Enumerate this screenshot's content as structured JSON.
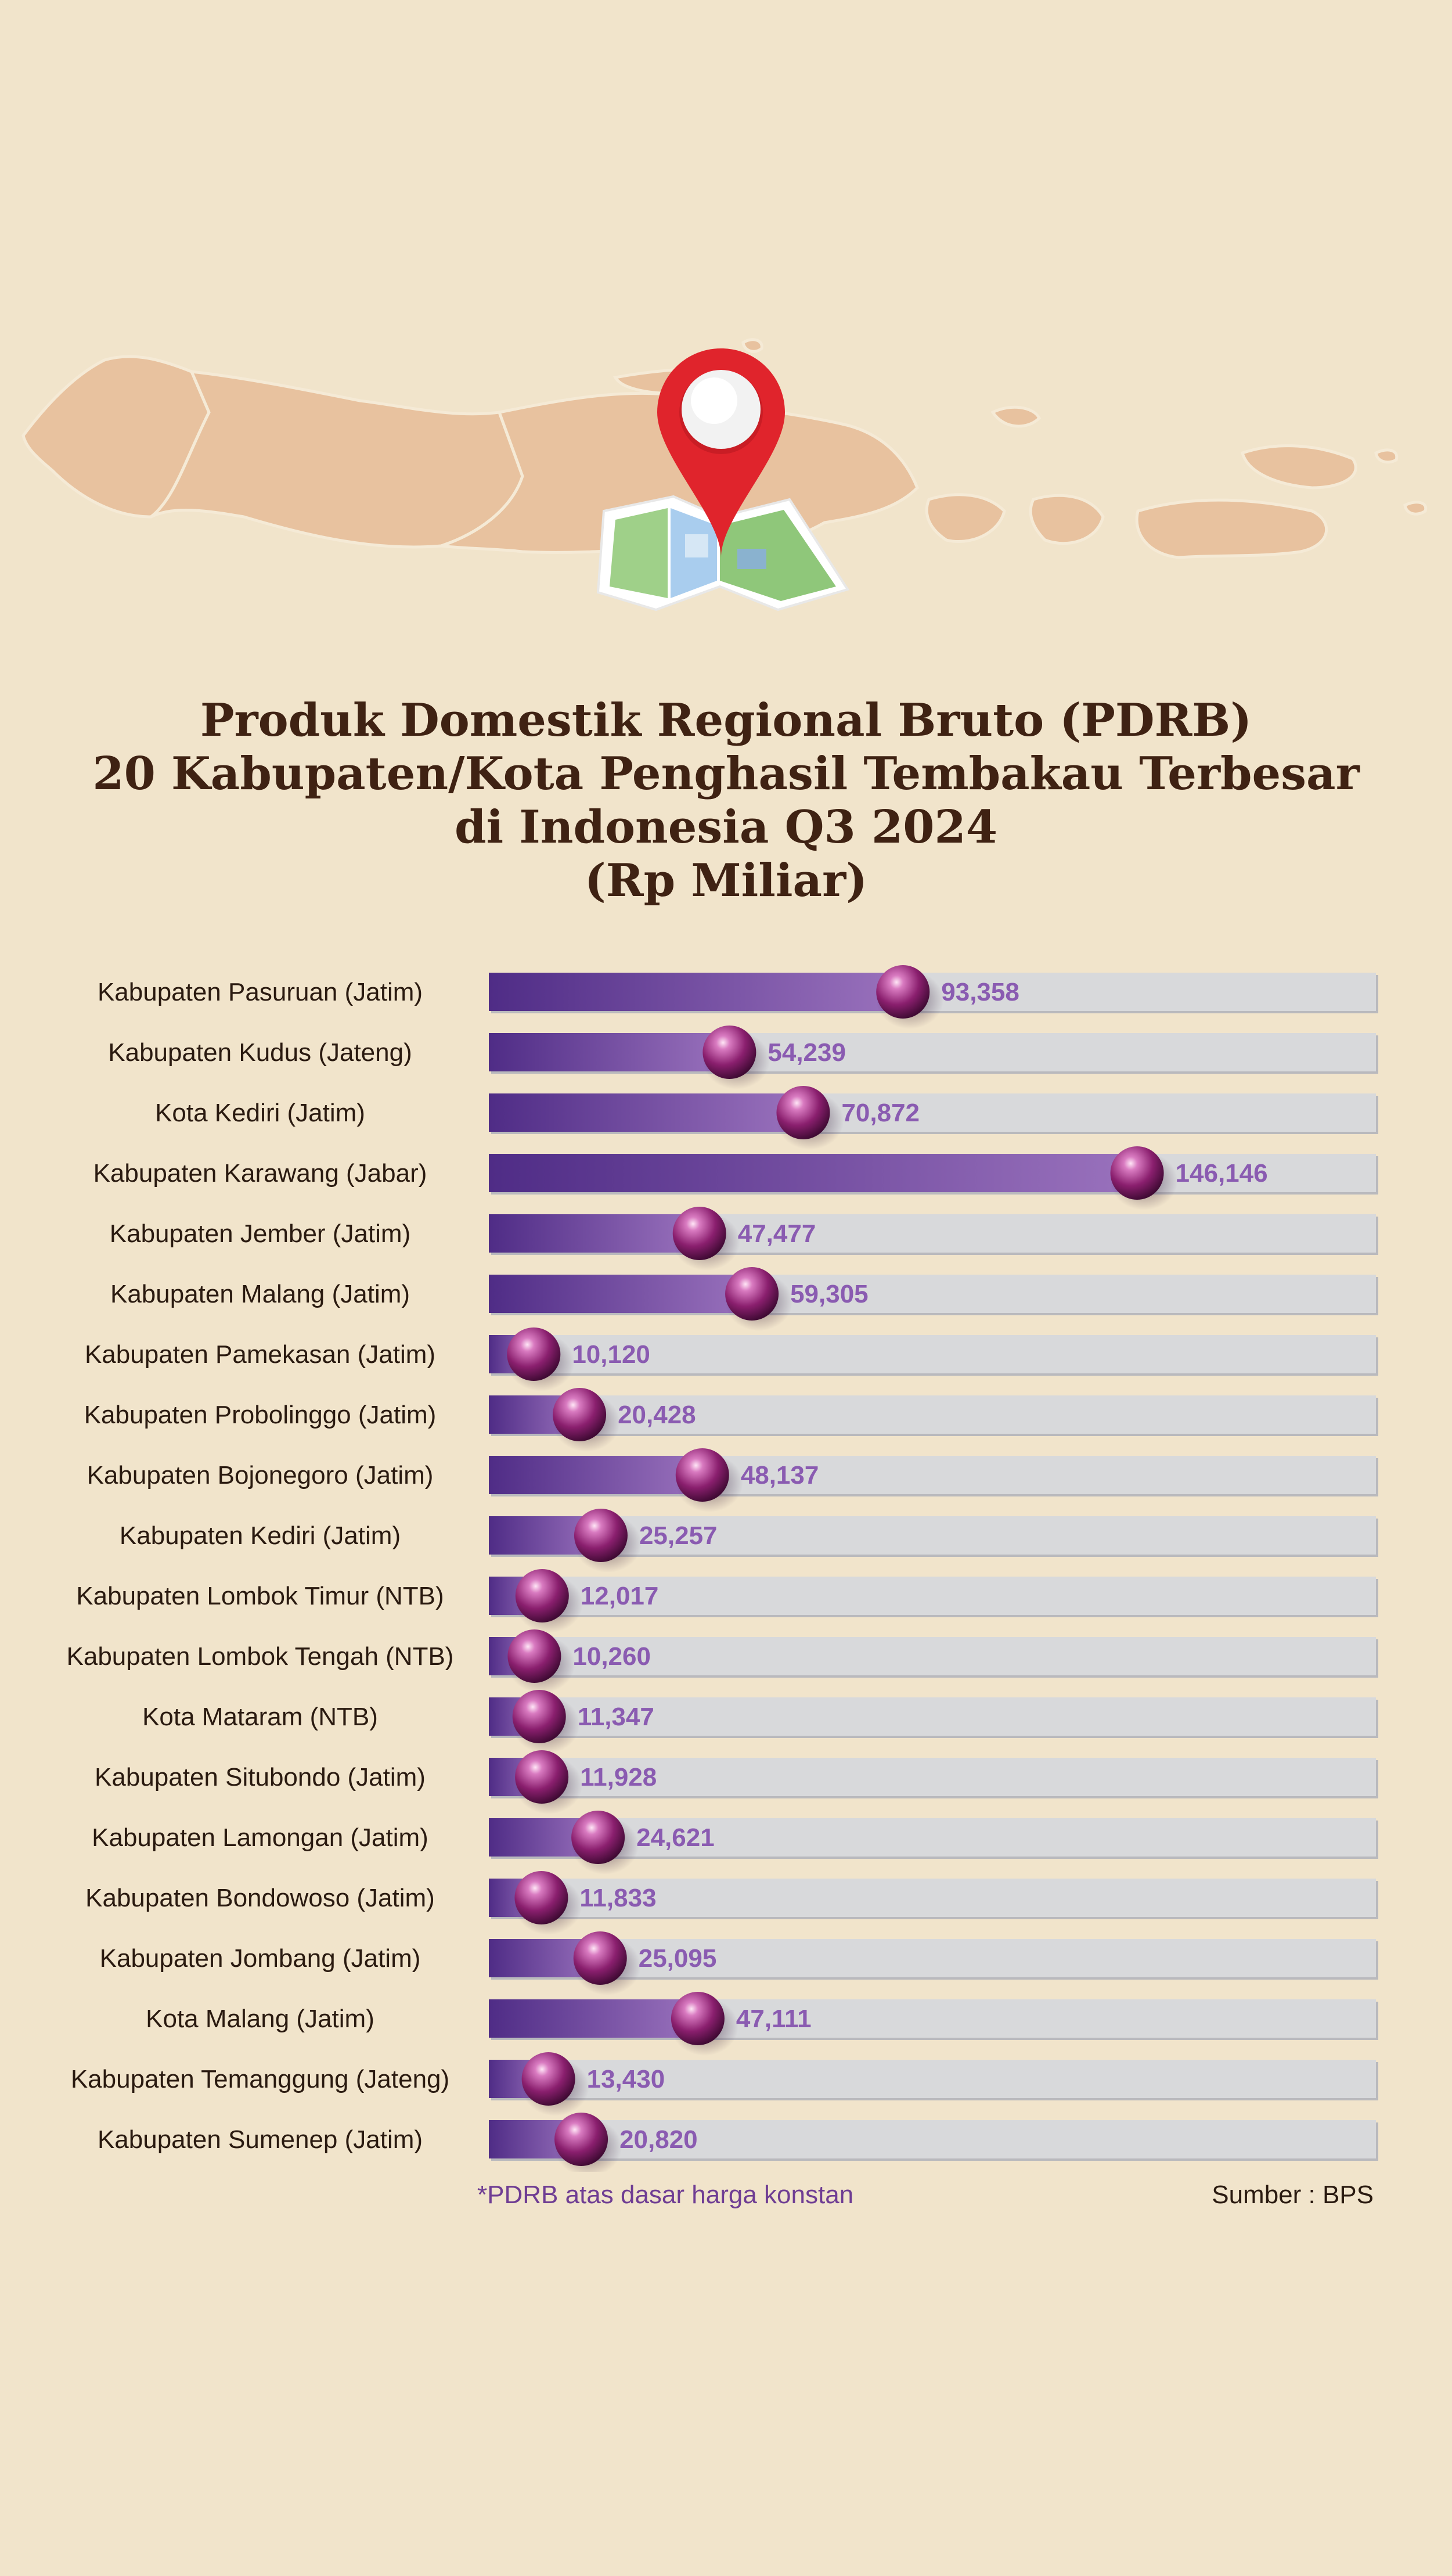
{
  "title_lines": [
    "Produk Domestik Regional Bruto (PDRB)",
    "20 Kabupaten/Kota Penghasil Tembakau Terbesar",
    "di Indonesia Q3 2024",
    "(Rp Miliar)"
  ],
  "footnote": "*PDRB atas dasar harga konstan",
  "source": "Sumber : BPS",
  "colors": {
    "background": "#f1e4cb",
    "map_land": "#e8c29f",
    "pin": "#e0242c",
    "bar_fill_start": "#4f2c86",
    "bar_fill_end": "#9a72bd",
    "bar_track": "#d8d9db",
    "value_label": "#8a5bb1",
    "marker": "#8a1f6e",
    "title": "#3f2213"
  },
  "icons": [
    "java-map-illustration",
    "map-pin-icon",
    "folded-map-icon"
  ],
  "chart_data": {
    "type": "bar",
    "orientation": "horizontal",
    "title": "Produk Domestik Regional Bruto (PDRB) 20 Kabupaten/Kota Penghasil Tembakau Terbesar di Indonesia Q3 2024 (Rp Miliar)",
    "categories": [
      "Kabupaten Pasuruan (Jatim)",
      "Kabupaten Kudus (Jateng)",
      "Kota Kediri (Jatim)",
      "Kabupaten Karawang (Jabar)",
      "Kabupaten Jember (Jatim)",
      "Kabupaten Malang (Jatim)",
      "Kabupaten Pamekasan (Jatim)",
      "Kabupaten Probolinggo (Jatim)",
      "Kabupaten Bojonegoro (Jatim)",
      "Kabupaten Kediri (Jatim)",
      "Kabupaten Lombok Timur (NTB)",
      "Kabupaten Lombok Tengah (NTB)",
      "Kota Mataram (NTB)",
      "Kabupaten Situbondo (Jatim)",
      "Kabupaten Lamongan (Jatim)",
      "Kabupaten Bondowoso (Jatim)",
      "Kabupaten Jombang (Jatim)",
      "Kota Malang (Jatim)",
      "Kabupaten Temanggung (Jateng)",
      "Kabupaten Sumenep (Jatim)"
    ],
    "values": [
      93358,
      54239,
      70872,
      146146,
      47477,
      59305,
      10120,
      20428,
      48137,
      25257,
      12017,
      10260,
      11347,
      11928,
      24621,
      11833,
      25095,
      47111,
      13430,
      20820
    ],
    "value_labels": [
      "93,358",
      "54,239",
      "70,872",
      "146,146",
      "47,477",
      "59,305",
      "10,120",
      "20,428",
      "48,137",
      "25,257",
      "12,017",
      "10,260",
      "11,347",
      "11,928",
      "24,621",
      "11,833",
      "25,095",
      "47,111",
      "13,430",
      "20,820"
    ],
    "xlim": [
      0,
      200000
    ]
  }
}
